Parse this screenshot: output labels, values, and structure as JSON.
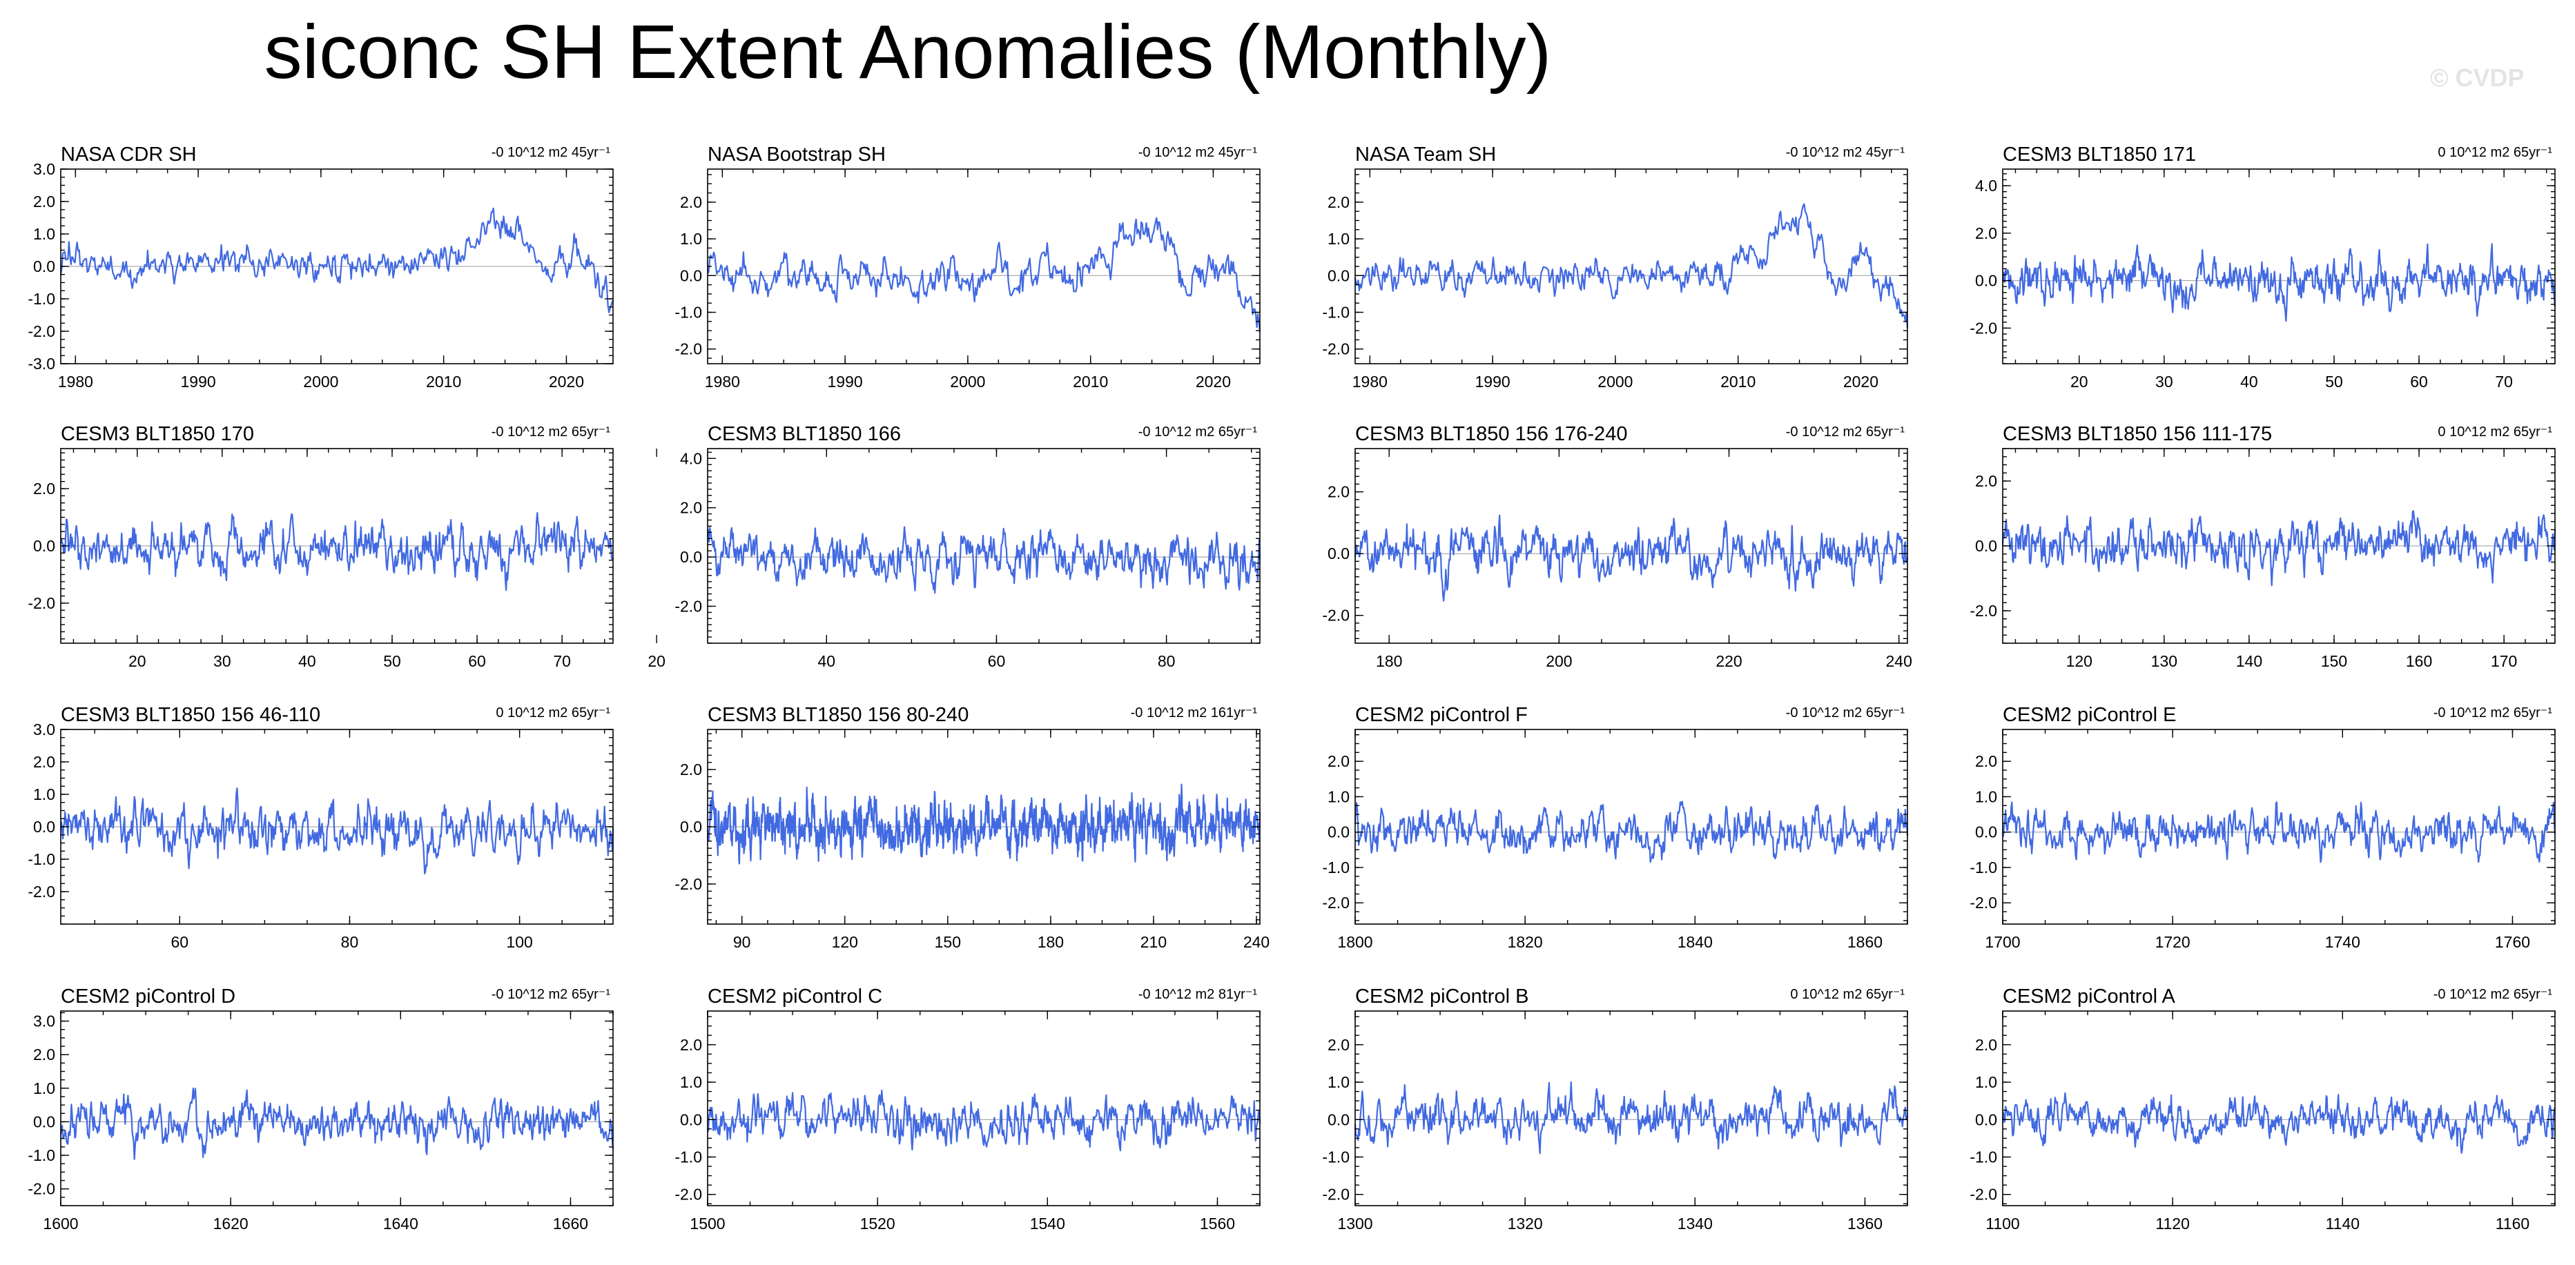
{
  "title": "siconc SH Extent Anomalies (Monthly)",
  "watermark": "© CVDP",
  "style": {
    "line_color": "#4169e1",
    "zero_line_color": "#999999"
  },
  "chart_data": [
    {
      "type": "line",
      "title": "NASA CDR SH",
      "trend_label": "-0 10^12 m2 45yr⁻¹",
      "xlim": [
        1978.8,
        2023.8
      ],
      "ylim": [
        -3,
        3
      ],
      "xticks": [
        1980,
        1990,
        2000,
        2010,
        2020
      ],
      "yticks": [
        -3,
        -2,
        -1,
        0,
        1,
        2,
        3
      ],
      "yticklabels": [
        "-3.0",
        "-2.0",
        "-1.0",
        "0.0",
        "1.0",
        "2.0",
        "3.0"
      ],
      "seed": 11,
      "amp": 0.5,
      "trend_shape": "obs"
    },
    {
      "type": "line",
      "title": "NASA Bootstrap SH",
      "trend_label": "-0 10^12 m2 45yr⁻¹",
      "xlim": [
        1978.8,
        2023.8
      ],
      "ylim": [
        -2.4,
        2.9
      ],
      "xticks": [
        1980,
        1990,
        2000,
        2010,
        2020
      ],
      "yticks": [
        -2,
        -1,
        0,
        1,
        2
      ],
      "yticklabels": [
        "-2.0",
        "-1.0",
        "0.0",
        "1.0",
        "2.0"
      ],
      "seed": 12,
      "amp": 0.5,
      "trend_shape": "obs"
    },
    {
      "type": "line",
      "title": "NASA Team SH",
      "trend_label": "-0 10^12 m2 45yr⁻¹",
      "xlim": [
        1978.8,
        2023.8
      ],
      "ylim": [
        -2.4,
        2.9
      ],
      "xticks": [
        1980,
        1990,
        2000,
        2010,
        2020
      ],
      "yticks": [
        -2,
        -1,
        0,
        1,
        2
      ],
      "yticklabels": [
        "-2.0",
        "-1.0",
        "0.0",
        "1.0",
        "2.0"
      ],
      "seed": 13,
      "amp": 0.5,
      "trend_shape": "obs"
    },
    {
      "type": "line",
      "title": "CESM3 BLT1850 171",
      "trend_label": "0 10^12 m2 65yr⁻¹",
      "xlim": [
        11,
        76
      ],
      "ylim": [
        -3.5,
        4.7
      ],
      "xticks": [
        20,
        30,
        40,
        50,
        60,
        70
      ],
      "yticks": [
        -2,
        0,
        2,
        4
      ],
      "yticklabels": [
        "-2.0",
        "0.0",
        "2.0",
        "4.0"
      ],
      "seed": 14,
      "amp": 0.9,
      "trend_shape": "flat"
    },
    {
      "type": "line",
      "title": "CESM3 BLT1850 170",
      "trend_label": "-0 10^12 m2 65yr⁻¹",
      "xlim": [
        11,
        76
      ],
      "ylim": [
        -3.4,
        3.4
      ],
      "xticks": [
        20,
        30,
        40,
        50,
        60,
        70
      ],
      "yticks": [
        -2,
        0,
        2
      ],
      "yticklabels": [
        "-2.0",
        "0.0",
        "2.0"
      ],
      "seed": 21,
      "amp": 0.8,
      "trend_shape": "flat"
    },
    {
      "type": "line",
      "title": "CESM3 BLT1850 166",
      "trend_label": "-0 10^12 m2 65yr⁻¹",
      "xlim": [
        26,
        91
      ],
      "ylim": [
        -3.5,
        4.4
      ],
      "xticks": [
        20,
        40,
        60,
        80
      ],
      "yticks": [
        -2,
        0,
        2,
        4
      ],
      "yticklabels": [
        "-2.0",
        "0.0",
        "2.0",
        "4.0"
      ],
      "seed": 22,
      "amp": 0.9,
      "trend_shape": "flat"
    },
    {
      "type": "line",
      "title": "CESM3 BLT1850 156 176-240",
      "trend_label": "-0 10^12 m2 65yr⁻¹",
      "xlim": [
        176,
        241
      ],
      "ylim": [
        -2.9,
        3.4
      ],
      "xticks": [
        180,
        200,
        220,
        240
      ],
      "yticks": [
        -2,
        0,
        2
      ],
      "yticklabels": [
        "-2.0",
        "0.0",
        "2.0"
      ],
      "seed": 23,
      "amp": 0.75,
      "trend_shape": "flat"
    },
    {
      "type": "line",
      "title": "CESM3 BLT1850 156 111-175",
      "trend_label": "0 10^12 m2 65yr⁻¹",
      "xlim": [
        111,
        176
      ],
      "ylim": [
        -3.0,
        3.0
      ],
      "xticks": [
        120,
        130,
        140,
        150,
        160,
        170
      ],
      "yticks": [
        -2,
        0,
        2
      ],
      "yticklabels": [
        "-2.0",
        "0.0",
        "2.0"
      ],
      "seed": 24,
      "amp": 0.75,
      "trend_shape": "flat"
    },
    {
      "type": "line",
      "title": "CESM3 BLT1850 156 46-110",
      "trend_label": "0 10^12 m2 65yr⁻¹",
      "xlim": [
        46,
        111
      ],
      "ylim": [
        -3,
        3
      ],
      "xticks": [
        60,
        80,
        100
      ],
      "yticks": [
        -2,
        -1,
        0,
        1,
        2,
        3
      ],
      "yticklabels": [
        "-2.0",
        "-1.0",
        "0.0",
        "1.0",
        "2.0",
        "3.0"
      ],
      "seed": 31,
      "amp": 0.75,
      "trend_shape": "flat"
    },
    {
      "type": "line",
      "title": "CESM3 BLT1850 156 80-240",
      "trend_label": "-0 10^12 m2 161yr⁻¹",
      "xlim": [
        80,
        241
      ],
      "ylim": [
        -3.4,
        3.4
      ],
      "xticks": [
        90,
        120,
        150,
        180,
        210,
        240
      ],
      "yticks": [
        -2,
        0,
        2
      ],
      "yticklabels": [
        "-2.0",
        "0.0",
        "2.0"
      ],
      "seed": 32,
      "amp": 0.85,
      "trend_shape": "flat"
    },
    {
      "type": "line",
      "title": "CESM2 piControl F",
      "trend_label": "-0 10^12 m2 65yr⁻¹",
      "xlim": [
        1800,
        1865
      ],
      "ylim": [
        -2.6,
        2.9
      ],
      "xticks": [
        1800,
        1820,
        1840,
        1860
      ],
      "yticks": [
        -2,
        -1,
        0,
        1,
        2
      ],
      "yticklabels": [
        "-2.0",
        "-1.0",
        "0.0",
        "1.0",
        "2.0"
      ],
      "seed": 33,
      "amp": 0.55,
      "trend_shape": "flat"
    },
    {
      "type": "line",
      "title": "CESM2 piControl E",
      "trend_label": "-0 10^12 m2 65yr⁻¹",
      "xlim": [
        1700,
        1765
      ],
      "ylim": [
        -2.6,
        2.9
      ],
      "xticks": [
        1700,
        1720,
        1740,
        1760
      ],
      "yticks": [
        -2,
        -1,
        0,
        1,
        2
      ],
      "yticklabels": [
        "-2.0",
        "-1.0",
        "0.0",
        "1.0",
        "2.0"
      ],
      "seed": 34,
      "amp": 0.55,
      "trend_shape": "flat"
    },
    {
      "type": "line",
      "title": "CESM2 piControl D",
      "trend_label": "-0 10^12 m2 65yr⁻¹",
      "xlim": [
        1600,
        1665
      ],
      "ylim": [
        -2.5,
        3.3
      ],
      "xticks": [
        1600,
        1620,
        1640,
        1660
      ],
      "yticks": [
        -2,
        -1,
        0,
        1,
        2,
        3
      ],
      "yticklabels": [
        "-2.0",
        "-1.0",
        "0.0",
        "1.0",
        "2.0",
        "3.0"
      ],
      "seed": 41,
      "amp": 0.6,
      "trend_shape": "flat"
    },
    {
      "type": "line",
      "title": "CESM2 piControl C",
      "trend_label": "-0 10^12 m2 81yr⁻¹",
      "xlim": [
        1500,
        1565
      ],
      "ylim": [
        -2.3,
        2.9
      ],
      "xticks": [
        1500,
        1520,
        1540,
        1560
      ],
      "yticks": [
        -2,
        -1,
        0,
        1,
        2
      ],
      "yticklabels": [
        "-2.0",
        "-1.0",
        "0.0",
        "1.0",
        "2.0"
      ],
      "seed": 42,
      "amp": 0.55,
      "trend_shape": "flat"
    },
    {
      "type": "line",
      "title": "CESM2 piControl B",
      "trend_label": "0 10^12 m2 65yr⁻¹",
      "xlim": [
        1300,
        1365
      ],
      "ylim": [
        -2.3,
        2.9
      ],
      "xticks": [
        1300,
        1320,
        1340,
        1360
      ],
      "yticks": [
        -2,
        -1,
        0,
        1,
        2
      ],
      "yticklabels": [
        "-2.0",
        "-1.0",
        "0.0",
        "1.0",
        "2.0"
      ],
      "seed": 43,
      "amp": 0.55,
      "trend_shape": "flat"
    },
    {
      "type": "line",
      "title": "CESM2 piControl A",
      "trend_label": "-0 10^12 m2 65yr⁻¹",
      "xlim": [
        1100,
        1165
      ],
      "ylim": [
        -2.3,
        2.9
      ],
      "xticks": [
        1100,
        1120,
        1140,
        1160
      ],
      "yticks": [
        -2,
        -1,
        0,
        1,
        2
      ],
      "yticklabels": [
        "-2.0",
        "-1.0",
        "0.0",
        "1.0",
        "2.0"
      ],
      "seed": 44,
      "amp": 0.5,
      "trend_shape": "flat"
    }
  ]
}
